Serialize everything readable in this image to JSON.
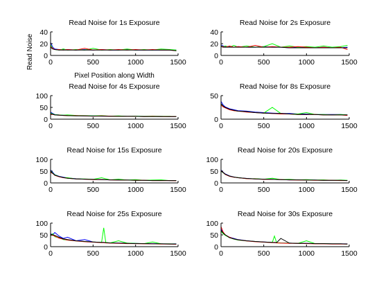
{
  "chart_data": [
    {
      "type": "line",
      "title": "Read Noise for 1s Exposure",
      "xlabel": "Pixel Position along Width",
      "ylabel": "Read Noise",
      "xlim": [
        0,
        1500
      ],
      "ylim": [
        0,
        40
      ],
      "xticks": [
        0,
        500,
        1000,
        1500
      ],
      "yticks": [
        0,
        20,
        40
      ],
      "x": [
        0,
        25,
        50,
        100,
        150,
        200,
        300,
        400,
        500,
        600,
        700,
        800,
        900,
        1000,
        1100,
        1200,
        1300,
        1400,
        1480
      ],
      "series": [
        {
          "color": "#0000ff",
          "values": [
            22,
            14,
            11,
            10,
            10,
            10,
            9,
            10,
            9,
            10,
            9,
            9,
            10,
            9,
            9,
            9,
            9,
            9,
            9
          ]
        },
        {
          "color": "#00ff00",
          "values": [
            18,
            12,
            10,
            9,
            11,
            9,
            10,
            9,
            12,
            9,
            10,
            9,
            11,
            9,
            10,
            9,
            11,
            10,
            9
          ]
        },
        {
          "color": "#ff0000",
          "values": [
            15,
            12,
            10,
            10,
            9,
            10,
            9,
            12,
            9,
            10,
            9,
            10,
            9,
            10,
            9,
            10,
            9,
            9,
            8
          ]
        },
        {
          "color": "#000000",
          "values": [
            14,
            11,
            10,
            9,
            9,
            9,
            9,
            9,
            9,
            9,
            9,
            9,
            9,
            9,
            9,
            9,
            9,
            9,
            8
          ]
        }
      ]
    },
    {
      "type": "line",
      "title": "Read Noise for 2s Exposure",
      "xlim": [
        0,
        1500
      ],
      "ylim": [
        0,
        40
      ],
      "xticks": [
        0,
        500,
        1000,
        1500
      ],
      "yticks": [
        0,
        20,
        40
      ],
      "x": [
        0,
        25,
        50,
        100,
        150,
        200,
        300,
        400,
        500,
        600,
        700,
        800,
        900,
        1000,
        1100,
        1200,
        1300,
        1400,
        1480
      ],
      "series": [
        {
          "color": "#0000ff",
          "values": [
            18,
            16,
            15,
            15,
            14,
            15,
            14,
            14,
            15,
            14,
            14,
            13,
            14,
            14,
            13,
            14,
            13,
            13,
            14
          ]
        },
        {
          "color": "#00ff00",
          "values": [
            16,
            15,
            16,
            14,
            17,
            14,
            16,
            14,
            15,
            20,
            14,
            16,
            14,
            15,
            14,
            16,
            14,
            15,
            17
          ]
        },
        {
          "color": "#ff0000",
          "values": [
            15,
            15,
            14,
            16,
            14,
            15,
            14,
            17,
            14,
            15,
            14,
            14,
            15,
            14,
            13,
            14,
            13,
            14,
            10
          ]
        },
        {
          "color": "#000000",
          "values": [
            15,
            14,
            14,
            14,
            14,
            14,
            14,
            14,
            14,
            14,
            14,
            13,
            13,
            13,
            13,
            13,
            13,
            13,
            13
          ]
        }
      ]
    },
    {
      "type": "line",
      "title": "Read Noise for 4s Exposure",
      "xlim": [
        0,
        1500
      ],
      "ylim": [
        0,
        100
      ],
      "xticks": [
        0,
        500,
        1000,
        1500
      ],
      "yticks": [
        0,
        50,
        100
      ],
      "x": [
        0,
        25,
        50,
        100,
        150,
        200,
        300,
        400,
        500,
        600,
        700,
        800,
        900,
        1000,
        1100,
        1200,
        1300,
        1400,
        1480
      ],
      "series": [
        {
          "color": "#0000ff",
          "values": [
            30,
            24,
            20,
            18,
            17,
            16,
            15,
            14,
            14,
            13,
            13,
            13,
            12,
            12,
            12,
            12,
            12,
            11,
            11
          ]
        },
        {
          "color": "#00ff00",
          "values": [
            25,
            22,
            19,
            18,
            17,
            18,
            16,
            15,
            14,
            15,
            13,
            14,
            12,
            13,
            12,
            13,
            12,
            12,
            11
          ]
        },
        {
          "color": "#ff0000",
          "values": [
            20,
            20,
            18,
            17,
            16,
            15,
            15,
            14,
            13,
            14,
            13,
            12,
            12,
            12,
            11,
            12,
            11,
            11,
            11
          ]
        },
        {
          "color": "#000000",
          "values": [
            22,
            21,
            18,
            17,
            16,
            15,
            14,
            14,
            13,
            13,
            12,
            12,
            12,
            12,
            11,
            11,
            11,
            11,
            11
          ]
        }
      ]
    },
    {
      "type": "line",
      "title": "Read Noise for 8s Exposure",
      "xlim": [
        0,
        1500
      ],
      "ylim": [
        0,
        50
      ],
      "xticks": [
        0,
        500,
        1000,
        1500
      ],
      "yticks": [
        0,
        50
      ],
      "x": [
        0,
        25,
        50,
        100,
        150,
        200,
        300,
        400,
        500,
        600,
        700,
        800,
        900,
        1000,
        1100,
        1200,
        1300,
        1400,
        1480
      ],
      "series": [
        {
          "color": "#0000ff",
          "values": [
            38,
            30,
            26,
            22,
            20,
            18,
            17,
            15,
            14,
            13,
            12,
            12,
            11,
            11,
            10,
            10,
            10,
            10,
            9
          ]
        },
        {
          "color": "#00ff00",
          "values": [
            32,
            28,
            24,
            21,
            18,
            17,
            16,
            14,
            13,
            25,
            12,
            11,
            11,
            14,
            10,
            10,
            9,
            10,
            9
          ]
        },
        {
          "color": "#ff0000",
          "values": [
            30,
            26,
            24,
            20,
            18,
            17,
            15,
            14,
            13,
            12,
            11,
            11,
            10,
            10,
            10,
            9,
            9,
            9,
            8
          ]
        },
        {
          "color": "#000000",
          "values": [
            33,
            28,
            25,
            21,
            19,
            17,
            16,
            14,
            13,
            12,
            12,
            11,
            10,
            10,
            10,
            9,
            9,
            9,
            9
          ]
        }
      ]
    },
    {
      "type": "line",
      "title": "Read Noise for 15s Exposure",
      "xlim": [
        0,
        1500
      ],
      "ylim": [
        0,
        100
      ],
      "xticks": [
        0,
        500,
        1000,
        1500
      ],
      "yticks": [
        0,
        50,
        100
      ],
      "x": [
        0,
        25,
        50,
        100,
        150,
        200,
        300,
        400,
        500,
        600,
        700,
        800,
        900,
        1000,
        1100,
        1200,
        1300,
        1400,
        1480
      ],
      "series": [
        {
          "color": "#0000ff",
          "values": [
            55,
            45,
            35,
            28,
            24,
            21,
            18,
            16,
            15,
            14,
            13,
            13,
            12,
            12,
            11,
            11,
            11,
            10,
            10
          ]
        },
        {
          "color": "#00ff00",
          "values": [
            50,
            42,
            34,
            27,
            23,
            22,
            17,
            17,
            15,
            22,
            13,
            16,
            12,
            14,
            11,
            12,
            13,
            10,
            10
          ]
        },
        {
          "color": "#ff0000",
          "values": [
            45,
            40,
            32,
            26,
            22,
            20,
            17,
            16,
            14,
            14,
            13,
            12,
            12,
            11,
            11,
            10,
            10,
            10,
            9
          ]
        },
        {
          "color": "#000000",
          "values": [
            48,
            41,
            33,
            27,
            23,
            20,
            17,
            16,
            15,
            14,
            13,
            12,
            12,
            11,
            11,
            10,
            10,
            10,
            10
          ]
        }
      ]
    },
    {
      "type": "line",
      "title": "Read Noise for 20s Exposure",
      "xlim": [
        0,
        1500
      ],
      "ylim": [
        0,
        100
      ],
      "xticks": [
        0,
        500,
        1000,
        1500
      ],
      "yticks": [
        0,
        50,
        100
      ],
      "x": [
        0,
        25,
        50,
        100,
        150,
        200,
        300,
        400,
        500,
        600,
        700,
        800,
        900,
        1000,
        1100,
        1200,
        1300,
        1400,
        1480
      ],
      "series": [
        {
          "color": "#0000ff",
          "values": [
            55,
            45,
            38,
            30,
            25,
            22,
            19,
            17,
            16,
            15,
            14,
            13,
            13,
            12,
            12,
            11,
            11,
            11,
            10
          ]
        },
        {
          "color": "#00ff00",
          "values": [
            50,
            43,
            36,
            29,
            24,
            23,
            18,
            18,
            16,
            20,
            14,
            15,
            13,
            14,
            12,
            13,
            11,
            12,
            11
          ]
        },
        {
          "color": "#ff0000",
          "values": [
            52,
            44,
            36,
            28,
            24,
            22,
            18,
            17,
            15,
            15,
            14,
            13,
            12,
            12,
            11,
            11,
            11,
            10,
            10
          ]
        },
        {
          "color": "#000000",
          "values": [
            50,
            44,
            37,
            29,
            25,
            22,
            19,
            17,
            16,
            15,
            14,
            13,
            13,
            12,
            12,
            11,
            11,
            11,
            10
          ]
        }
      ]
    },
    {
      "type": "line",
      "title": "Read Noise for 25s Exposure",
      "xlim": [
        0,
        1500
      ],
      "ylim": [
        0,
        100
      ],
      "xticks": [
        0,
        500,
        1000,
        1500
      ],
      "yticks": [
        0,
        50,
        100
      ],
      "x": [
        0,
        25,
        50,
        100,
        150,
        200,
        300,
        400,
        500,
        600,
        625,
        650,
        700,
        800,
        900,
        1000,
        1100,
        1200,
        1300,
        1400,
        1480
      ],
      "series": [
        {
          "color": "#0000ff",
          "values": [
            55,
            50,
            60,
            45,
            35,
            40,
            25,
            30,
            20,
            18,
            18,
            17,
            16,
            15,
            15,
            14,
            13,
            13,
            12,
            12,
            12
          ]
        },
        {
          "color": "#00ff00",
          "values": [
            45,
            55,
            42,
            38,
            30,
            28,
            24,
            22,
            20,
            18,
            80,
            18,
            16,
            25,
            15,
            14,
            13,
            20,
            12,
            12,
            11
          ]
        },
        {
          "color": "#ff0000",
          "values": [
            50,
            48,
            45,
            36,
            32,
            28,
            24,
            21,
            19,
            17,
            17,
            16,
            15,
            14,
            13,
            13,
            12,
            12,
            11,
            11,
            10
          ]
        },
        {
          "color": "#000000",
          "values": [
            52,
            50,
            48,
            40,
            33,
            30,
            25,
            22,
            20,
            18,
            18,
            17,
            16,
            15,
            14,
            13,
            13,
            12,
            12,
            11,
            11
          ]
        }
      ]
    },
    {
      "type": "line",
      "title": "Read Noise for 30s Exposure",
      "xlim": [
        0,
        1500
      ],
      "ylim": [
        0,
        100
      ],
      "xticks": [
        0,
        500,
        1000,
        1500
      ],
      "yticks": [
        0,
        50,
        100
      ],
      "x": [
        0,
        25,
        50,
        100,
        150,
        200,
        300,
        400,
        500,
        600,
        625,
        650,
        700,
        800,
        900,
        1000,
        1100,
        1200,
        1300,
        1400,
        1480
      ],
      "series": [
        {
          "color": "#0000ff",
          "values": [
            75,
            60,
            50,
            40,
            35,
            30,
            25,
            22,
            20,
            18,
            17,
            17,
            16,
            15,
            14,
            14,
            13,
            13,
            12,
            12,
            12
          ]
        },
        {
          "color": "#00ff00",
          "values": [
            65,
            55,
            48,
            38,
            32,
            28,
            24,
            22,
            19,
            18,
            45,
            17,
            16,
            15,
            14,
            25,
            13,
            13,
            12,
            12,
            11
          ]
        },
        {
          "color": "#ff0000",
          "values": [
            85,
            62,
            50,
            40,
            33,
            29,
            24,
            21,
            19,
            17,
            17,
            16,
            15,
            14,
            14,
            13,
            12,
            12,
            11,
            11,
            11
          ]
        },
        {
          "color": "#000000",
          "values": [
            70,
            58,
            50,
            38,
            33,
            29,
            25,
            22,
            20,
            18,
            18,
            17,
            35,
            15,
            14,
            14,
            13,
            13,
            12,
            12,
            11
          ]
        }
      ]
    }
  ]
}
